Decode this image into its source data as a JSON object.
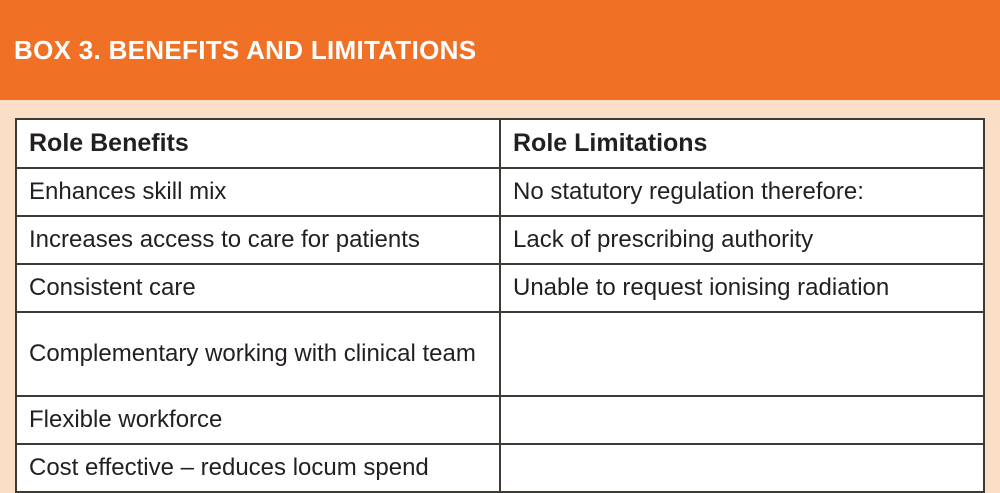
{
  "panel": {
    "title": "BOX 3. BENEFITS AND LIMITATIONS"
  },
  "table": {
    "headers": [
      "Role Benefits",
      "Role Limitations"
    ],
    "rows": [
      {
        "benefit": "Enhances skill mix",
        "limitation": "No statutory regulation therefore:"
      },
      {
        "benefit": "Increases access to care for patients",
        "limitation": "Lack of prescribing authority"
      },
      {
        "benefit": "Consistent care",
        "limitation": "Unable to request ionising radiation"
      },
      {
        "benefit": "Complementary working with clinical team",
        "limitation": ""
      },
      {
        "benefit": "Flexible workforce",
        "limitation": ""
      },
      {
        "benefit": "Cost effective – reduces locum spend",
        "limitation": ""
      }
    ]
  },
  "colors": {
    "header_orange": "#F07125",
    "panel_peach": "#FBDEC6",
    "table_border": "#3E3A36",
    "body_text": "#231F20",
    "title_text": "#FFFFFF",
    "cell_background": "#FFFFFF"
  }
}
